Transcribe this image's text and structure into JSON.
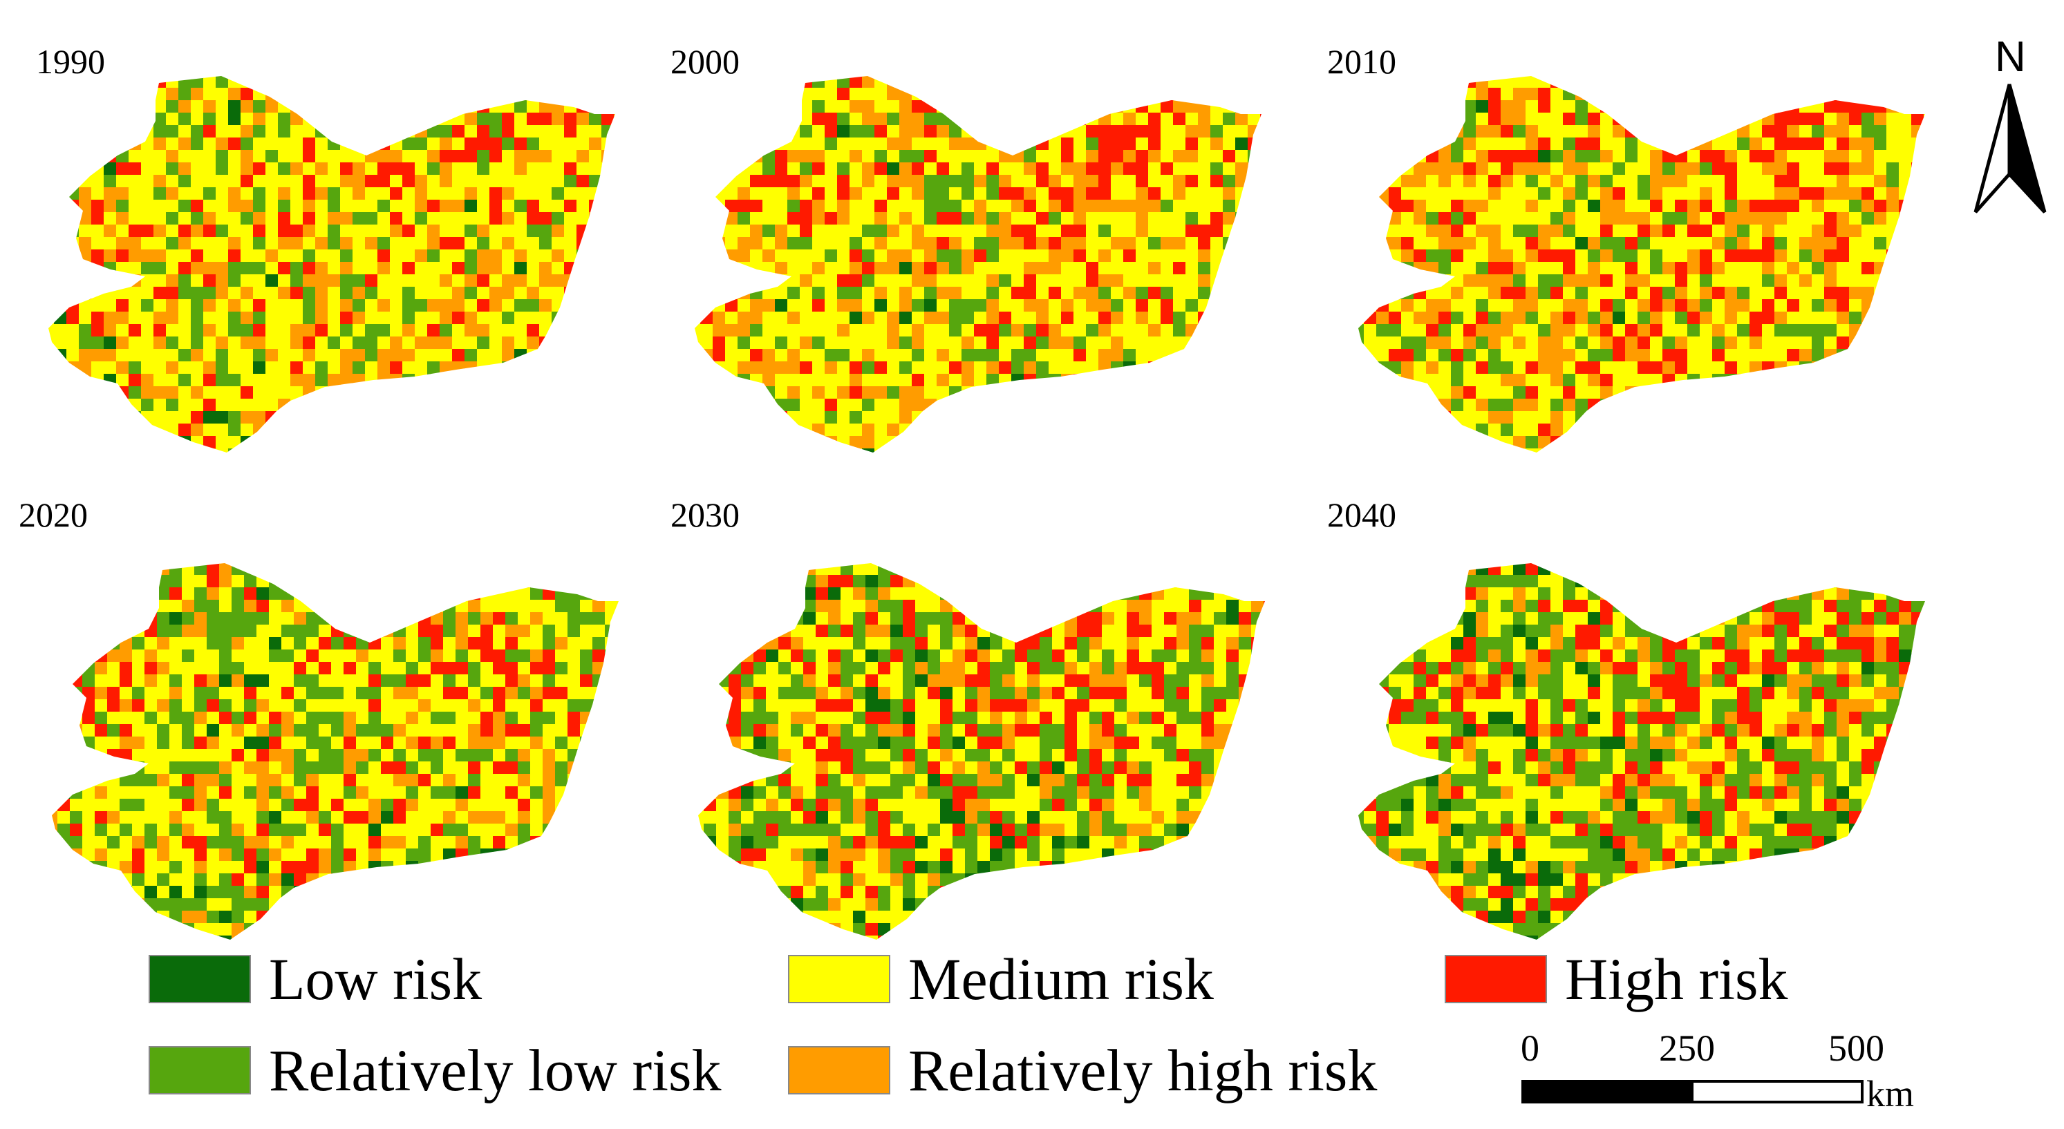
{
  "figure": {
    "panels": [
      {
        "year": "1990",
        "mix": [
          0.03,
          0.18,
          0.45,
          0.24,
          0.1
        ]
      },
      {
        "year": "2000",
        "mix": [
          0.03,
          0.15,
          0.44,
          0.26,
          0.12
        ]
      },
      {
        "year": "2010",
        "mix": [
          0.02,
          0.15,
          0.4,
          0.28,
          0.15
        ]
      },
      {
        "year": "2020",
        "mix": [
          0.07,
          0.3,
          0.38,
          0.15,
          0.1
        ]
      },
      {
        "year": "2030",
        "mix": [
          0.07,
          0.32,
          0.35,
          0.14,
          0.12
        ]
      },
      {
        "year": "2040",
        "mix": [
          0.08,
          0.32,
          0.32,
          0.14,
          0.14
        ]
      }
    ]
  },
  "legend": {
    "items": [
      {
        "key": "low",
        "label": "Low risk",
        "color": "#0a6b0a"
      },
      {
        "key": "relatively_low",
        "label": "Relatively low risk",
        "color": "#56a60e"
      },
      {
        "key": "medium",
        "label": "Medium risk",
        "color": "#ffff00"
      },
      {
        "key": "relatively_high",
        "label": "Relatively high risk",
        "color": "#ff9c00"
      },
      {
        "key": "high",
        "label": "High risk",
        "color": "#ff1a00"
      }
    ]
  },
  "compass": {
    "label": "N",
    "icon": "north-arrow-icon"
  },
  "scale_bar": {
    "ticks": [
      "0",
      "250",
      "500"
    ],
    "unit": "km"
  }
}
